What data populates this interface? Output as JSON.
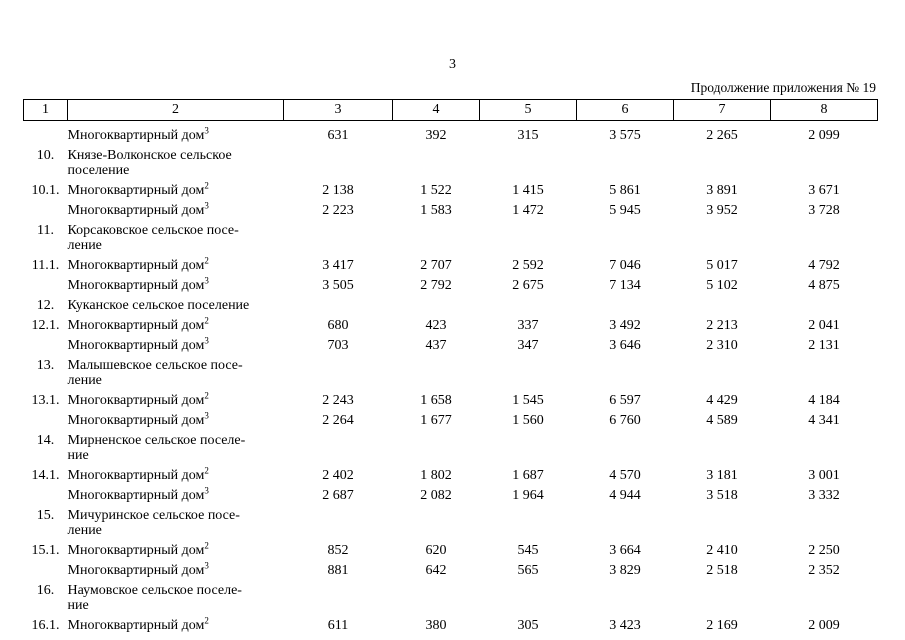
{
  "page": {
    "number": "3",
    "continuation_note": "Продолжение приложения № 19"
  },
  "table": {
    "header": [
      "1",
      "2",
      "3",
      "4",
      "5",
      "6",
      "7",
      "8"
    ],
    "rows": [
      {
        "num": "",
        "name": "Многоквартирный дом",
        "sup": "3",
        "values": [
          "631",
          "392",
          "315",
          "3 575",
          "2 265",
          "2 099"
        ]
      },
      {
        "num": "10.",
        "name": "Князе-Волконское сельское\nпоселение",
        "sup": "",
        "values": []
      },
      {
        "num": "10.1.",
        "name": "Многоквартирный дом",
        "sup": "2",
        "values": [
          "2 138",
          "1 522",
          "1 415",
          "5 861",
          "3 891",
          "3 671"
        ]
      },
      {
        "num": "",
        "name": "Многоквартирный дом",
        "sup": "3",
        "values": [
          "2 223",
          "1 583",
          "1 472",
          "5 945",
          "3 952",
          "3 728"
        ]
      },
      {
        "num": "11.",
        "name": "Корсаковское сельское посе-\nление",
        "sup": "",
        "values": []
      },
      {
        "num": "11.1.",
        "name": "Многоквартирный дом",
        "sup": "2",
        "values": [
          "3 417",
          "2 707",
          "2 592",
          "7 046",
          "5 017",
          "4 792"
        ]
      },
      {
        "num": "",
        "name": "Многоквартирный дом",
        "sup": "3",
        "values": [
          "3 505",
          "2 792",
          "2 675",
          "7 134",
          "5 102",
          "4 875"
        ]
      },
      {
        "num": "12.",
        "name": "Куканское сельское поселение",
        "sup": "",
        "values": []
      },
      {
        "num": "12.1.",
        "name": "Многоквартирный дом",
        "sup": "2",
        "values": [
          "680",
          "423",
          "337",
          "3 492",
          "2 213",
          "2 041"
        ]
      },
      {
        "num": "",
        "name": "Многоквартирный дом",
        "sup": "3",
        "values": [
          "703",
          "437",
          "347",
          "3 646",
          "2 310",
          "2 131"
        ]
      },
      {
        "num": "13.",
        "name": "Малышевское сельское посе-\nление",
        "sup": "",
        "values": []
      },
      {
        "num": "13.1.",
        "name": "Многоквартирный дом",
        "sup": "2",
        "values": [
          "2 243",
          "1 658",
          "1 545",
          "6 597",
          "4 429",
          "4 184"
        ]
      },
      {
        "num": "",
        "name": "Многоквартирный дом",
        "sup": "3",
        "values": [
          "2 264",
          "1 677",
          "1 560",
          "6 760",
          "4 589",
          "4 341"
        ]
      },
      {
        "num": "14.",
        "name": "Мирненское сельское поселе-\nние",
        "sup": "",
        "values": []
      },
      {
        "num": "14.1.",
        "name": "Многоквартирный дом",
        "sup": "2",
        "values": [
          "2 402",
          "1 802",
          "1 687",
          "4 570",
          "3 181",
          "3 001"
        ]
      },
      {
        "num": "",
        "name": "Многоквартирный дом",
        "sup": "3",
        "values": [
          "2 687",
          "2 082",
          "1 964",
          "4 944",
          "3 518",
          "3 332"
        ]
      },
      {
        "num": "15.",
        "name": "Мичуринское сельское посе-\nление",
        "sup": "",
        "values": []
      },
      {
        "num": "15.1.",
        "name": "Многоквартирный дом",
        "sup": "2",
        "values": [
          "852",
          "620",
          "545",
          "3 664",
          "2 410",
          "2 250"
        ]
      },
      {
        "num": "",
        "name": "Многоквартирный дом",
        "sup": "3",
        "values": [
          "881",
          "642",
          "565",
          "3 829",
          "2 518",
          "2 352"
        ]
      },
      {
        "num": "16.",
        "name": "Наумовское сельское поселе-\nние",
        "sup": "",
        "values": []
      },
      {
        "num": "16.1.",
        "name": "Многоквартирный дом",
        "sup": "2",
        "values": [
          "611",
          "380",
          "305",
          "3 423",
          "2 169",
          "2 009"
        ]
      }
    ]
  }
}
